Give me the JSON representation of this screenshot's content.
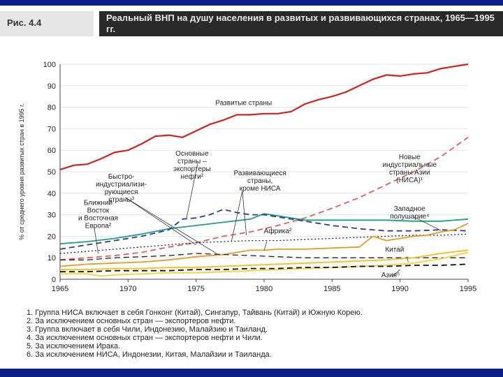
{
  "header": {
    "figure_label": "Рис. 4.4",
    "title": "Реальный ВНП на душу населения в развитых и развивающихся странах, 1965—1995 гг."
  },
  "chart_data": {
    "type": "line",
    "ylabel": "% от среднего уровня развитых стран в 1995 г.",
    "xlabel": "",
    "xlim": [
      1965,
      1995
    ],
    "ylim": [
      0,
      100
    ],
    "x_ticks": [
      1965,
      1970,
      1975,
      1980,
      1985,
      1990,
      1995
    ],
    "y_ticks": [
      0,
      10,
      20,
      30,
      40,
      50,
      60,
      70,
      80,
      90,
      100
    ],
    "grid": true,
    "series": [
      {
        "name": "Развитые страны",
        "color": "#d42020",
        "style": "solid",
        "width": 2.2,
        "points": [
          [
            1965,
            51
          ],
          [
            1966,
            53
          ],
          [
            1967,
            53.5
          ],
          [
            1968,
            56
          ],
          [
            1969,
            59
          ],
          [
            1970,
            60
          ],
          [
            1971,
            63
          ],
          [
            1972,
            66.5
          ],
          [
            1973,
            67
          ],
          [
            1974,
            66
          ],
          [
            1975,
            69
          ],
          [
            1976,
            72
          ],
          [
            1977,
            74
          ],
          [
            1978,
            76.5
          ],
          [
            1979,
            76.5
          ],
          [
            1980,
            77
          ],
          [
            1981,
            77
          ],
          [
            1982,
            78
          ],
          [
            1983,
            81.5
          ],
          [
            1984,
            83.5
          ],
          [
            1985,
            85
          ],
          [
            1986,
            87
          ],
          [
            1987,
            90
          ],
          [
            1988,
            93
          ],
          [
            1989,
            95
          ],
          [
            1990,
            94.5
          ],
          [
            1991,
            95.5
          ],
          [
            1992,
            96
          ],
          [
            1993,
            98
          ],
          [
            1994,
            99
          ],
          [
            1995,
            100
          ]
        ]
      },
      {
        "name": "Новые индустриальные страны Азии (НИСА)",
        "color": "#e06060",
        "style": "dashed",
        "width": 1.8,
        "points": [
          [
            1965,
            9
          ],
          [
            1967,
            10
          ],
          [
            1969,
            11
          ],
          [
            1971,
            12.5
          ],
          [
            1973,
            15
          ],
          [
            1975,
            17
          ],
          [
            1977,
            20
          ],
          [
            1979,
            22
          ],
          [
            1981,
            25
          ],
          [
            1983,
            28.5
          ],
          [
            1985,
            33
          ],
          [
            1987,
            38
          ],
          [
            1989,
            44
          ],
          [
            1991,
            50
          ],
          [
            1993,
            57
          ],
          [
            1995,
            66
          ]
        ]
      },
      {
        "name": "Западное полушарие",
        "color": "#1f9e84",
        "style": "solid",
        "width": 1.8,
        "points": [
          [
            1965,
            16.5
          ],
          [
            1967,
            17.5
          ],
          [
            1969,
            19
          ],
          [
            1971,
            21
          ],
          [
            1973,
            23.5
          ],
          [
            1975,
            25
          ],
          [
            1977,
            26.5
          ],
          [
            1979,
            28
          ],
          [
            1980,
            30.5
          ],
          [
            1981,
            29.5
          ],
          [
            1983,
            27.5
          ],
          [
            1985,
            27.5
          ],
          [
            1987,
            27.5
          ],
          [
            1989,
            27.5
          ],
          [
            1991,
            27
          ],
          [
            1993,
            27
          ],
          [
            1995,
            28
          ]
        ]
      },
      {
        "name": "Ближний Восток и Восточная Европа",
        "color": "#2a3d8f",
        "style": "dashed",
        "width": 1.8,
        "points": [
          [
            1965,
            14
          ],
          [
            1967,
            16
          ],
          [
            1969,
            18
          ],
          [
            1971,
            20
          ],
          [
            1973,
            23
          ],
          [
            1974,
            28
          ],
          [
            1975,
            28.5
          ],
          [
            1976,
            30
          ],
          [
            1977,
            32.5
          ],
          [
            1978,
            31
          ],
          [
            1979,
            30
          ],
          [
            1980,
            30
          ],
          [
            1981,
            29
          ],
          [
            1983,
            27
          ],
          [
            1985,
            25
          ],
          [
            1987,
            23.5
          ],
          [
            1989,
            22.5
          ],
          [
            1991,
            22.5
          ],
          [
            1993,
            23
          ],
          [
            1995,
            22.5
          ]
        ]
      },
      {
        "name": "Развивающиеся страны, кроме НИСА",
        "color": "#222222",
        "style": "dotted",
        "width": 1.3,
        "points": [
          [
            1965,
            12
          ],
          [
            1967,
            13
          ],
          [
            1969,
            14
          ],
          [
            1971,
            15
          ],
          [
            1973,
            16
          ],
          [
            1975,
            17
          ],
          [
            1977,
            17.5
          ],
          [
            1979,
            18
          ],
          [
            1981,
            18
          ],
          [
            1983,
            18.5
          ],
          [
            1985,
            19
          ],
          [
            1987,
            19.5
          ],
          [
            1989,
            20
          ],
          [
            1991,
            20.5
          ],
          [
            1993,
            20.5
          ],
          [
            1995,
            21
          ]
        ]
      },
      {
        "name": "Африка",
        "color": "#e89a20",
        "style": "solid",
        "width": 1.8,
        "points": [
          [
            1965,
            6
          ],
          [
            1967,
            7
          ],
          [
            1969,
            7.5
          ],
          [
            1971,
            8
          ],
          [
            1973,
            9
          ],
          [
            1975,
            10.5
          ],
          [
            1977,
            11.5
          ],
          [
            1978,
            12.5
          ],
          [
            1979,
            13.5
          ],
          [
            1980,
            13.5
          ],
          [
            1981,
            14
          ],
          [
            1983,
            14
          ],
          [
            1985,
            14.5
          ],
          [
            1987,
            15
          ],
          [
            1988,
            20
          ],
          [
            1989,
            18
          ],
          [
            1990,
            19
          ],
          [
            1991,
            20
          ],
          [
            1992,
            20.5
          ],
          [
            1993,
            22
          ],
          [
            1994,
            23
          ],
          [
            1995,
            26
          ]
        ]
      },
      {
        "name": "Экспортеры нефти",
        "color": "#222222",
        "style": "dashed",
        "width": 1.3,
        "points": [
          [
            1965,
            9
          ],
          [
            1967,
            9
          ],
          [
            1969,
            10
          ],
          [
            1971,
            10.5
          ],
          [
            1973,
            11
          ],
          [
            1975,
            12
          ],
          [
            1977,
            11.5
          ],
          [
            1979,
            11
          ],
          [
            1981,
            10.5
          ],
          [
            1983,
            10
          ],
          [
            1985,
            10
          ],
          [
            1987,
            10
          ],
          [
            1989,
            10
          ],
          [
            1991,
            10
          ],
          [
            1993,
            10
          ],
          [
            1995,
            10
          ]
        ]
      },
      {
        "name": "Китай",
        "color": "#f2c230",
        "style": "solid",
        "width": 2,
        "points": [
          [
            1965,
            4.5
          ],
          [
            1967,
            4.5
          ],
          [
            1969,
            5
          ],
          [
            1971,
            5
          ],
          [
            1973,
            5.5
          ],
          [
            1975,
            5.5
          ],
          [
            1977,
            6
          ],
          [
            1979,
            6.5
          ],
          [
            1981,
            7
          ],
          [
            1983,
            7.5
          ],
          [
            1985,
            8
          ],
          [
            1987,
            8.5
          ],
          [
            1989,
            9
          ],
          [
            1991,
            10
          ],
          [
            1993,
            12
          ],
          [
            1995,
            13.5
          ]
        ]
      },
      {
        "name": "Азия",
        "color": "#f5d545",
        "style": "solid",
        "width": 2,
        "points": [
          [
            1965,
            2.5
          ],
          [
            1967,
            2.5
          ],
          [
            1968,
            1.5
          ],
          [
            1969,
            2
          ],
          [
            1971,
            2.5
          ],
          [
            1973,
            3
          ],
          [
            1975,
            3
          ],
          [
            1977,
            3.5
          ],
          [
            1979,
            4
          ],
          [
            1981,
            4.5
          ],
          [
            1983,
            5
          ],
          [
            1985,
            5.5
          ],
          [
            1987,
            6
          ],
          [
            1989,
            6.5
          ],
          [
            1991,
            7.5
          ],
          [
            1993,
            9.5
          ],
          [
            1995,
            12.5
          ]
        ]
      },
      {
        "name": "Азия (черная)",
        "color": "#111111",
        "style": "dashed",
        "width": 1.8,
        "points": [
          [
            1965,
            3.5
          ],
          [
            1967,
            3.5
          ],
          [
            1969,
            4
          ],
          [
            1971,
            4
          ],
          [
            1973,
            4
          ],
          [
            1975,
            4.5
          ],
          [
            1977,
            4.5
          ],
          [
            1979,
            5
          ],
          [
            1981,
            5
          ],
          [
            1983,
            5.5
          ],
          [
            1985,
            5.5
          ],
          [
            1987,
            6
          ],
          [
            1989,
            6
          ],
          [
            1991,
            6.5
          ],
          [
            1993,
            6.5
          ],
          [
            1995,
            7
          ]
        ]
      }
    ],
    "annotations": [
      {
        "lines": [
          "Развитые страны"
        ]
      },
      {
        "lines": [
          "Новые",
          "индустриальные",
          "страны Азии",
          "(НИСА)¹"
        ]
      },
      {
        "lines": [
          "Основные",
          "страны –",
          "экспортеры",
          "нефти²"
        ]
      },
      {
        "lines": [
          "Быстро-",
          "индустриализи-",
          "рующиеся",
          "страны³"
        ]
      },
      {
        "lines": [
          "Развивающиеся",
          "страны,",
          "кроме НИСА"
        ]
      },
      {
        "lines": [
          "Ближний",
          "Восток",
          "и Восточная",
          "Европа²"
        ]
      },
      {
        "lines": [
          "Западное",
          "полушарие⁴"
        ]
      },
      {
        "lines": [
          "Африка²"
        ]
      },
      {
        "lines": [
          "Китай"
        ]
      },
      {
        "lines": [
          "Азия⁵"
        ]
      }
    ]
  },
  "notes": [
    "1. Группа НИСА включает в себя Гонконг (Китай), Сингапур, Тайвань (Китай) и Южную Корею.",
    "2. За исключением основных стран — экспортеров нефти.",
    "3. Группа включает в себя Чили, Индонезию, Малайзию и Таиланд.",
    "4. За исключением основных стран — экспортеров нефти и Чили.",
    "5. За исключением Ирака.",
    "6. За исключением НИСА, Индонезии, Китая, Малайзии и Таиланда."
  ]
}
